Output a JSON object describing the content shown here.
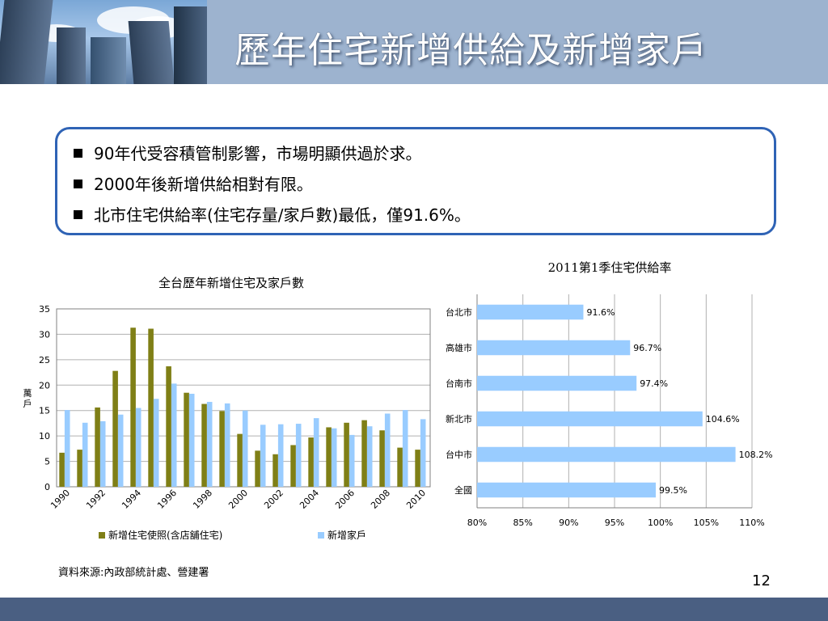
{
  "slide": {
    "title": "歷年住宅新增供給及新增家戶",
    "bullets": [
      "90年代受容積管制影響，市場明顯供過於求。",
      "2000年後新增供給相對有限。",
      "北市住宅供給率(住宅存量/家戶數)最低，僅91.6%。"
    ],
    "source": "資料來源:內政部統計處、營建署",
    "page_number": "12"
  },
  "chart_data": [
    {
      "type": "bar",
      "title": "全台歷年新增住宅及家戶數",
      "ylabel": "萬戶",
      "ylim": [
        0,
        35
      ],
      "yticks": [
        0,
        5,
        10,
        15,
        20,
        25,
        30,
        35
      ],
      "categories": [
        "1990",
        "1991",
        "1992",
        "1993",
        "1994",
        "1995",
        "1996",
        "1997",
        "1998",
        "1999",
        "2000",
        "2001",
        "2002",
        "2003",
        "2004",
        "2005",
        "2006",
        "2007",
        "2008",
        "2009",
        "2010"
      ],
      "xtick_labels": [
        "1990",
        "1992",
        "1994",
        "1996",
        "1998",
        "2000",
        "2002",
        "2004",
        "2006",
        "2008",
        "2010"
      ],
      "grid": true,
      "legend": "bottom",
      "series": [
        {
          "name": "新增住宅使照(含店舖住宅)",
          "color": "#7f7f16",
          "values": [
            6.7,
            7.3,
            15.6,
            22.8,
            31.3,
            31.1,
            23.7,
            18.5,
            16.3,
            14.9,
            10.4,
            7.1,
            6.4,
            8.2,
            9.7,
            11.7,
            12.6,
            13.1,
            11.1,
            7.7,
            7.3
          ]
        },
        {
          "name": "新增家戶",
          "color": "#99ccff",
          "values": [
            15.1,
            12.6,
            12.9,
            14.2,
            15.5,
            17.3,
            20.3,
            18.3,
            16.7,
            16.4,
            15.0,
            12.2,
            12.3,
            12.4,
            13.5,
            11.5,
            10.2,
            11.9,
            14.4,
            15.1,
            13.3
          ]
        }
      ]
    },
    {
      "type": "bar",
      "orientation": "horizontal",
      "title": "2011第1季住宅供給率",
      "xlim": [
        80,
        110
      ],
      "xticks": [
        "80%",
        "85%",
        "90%",
        "95%",
        "100%",
        "105%",
        "110%"
      ],
      "xtick_values": [
        80,
        85,
        90,
        95,
        100,
        105,
        110
      ],
      "grid": true,
      "color": "#99ccff",
      "categories": [
        "台北市",
        "高雄市",
        "台南市",
        "新北市",
        "台中市",
        "全國"
      ],
      "values": [
        91.6,
        96.7,
        97.4,
        104.6,
        108.2,
        99.5
      ],
      "data_labels": [
        "91.6%",
        "96.7%",
        "97.4%",
        "104.6%",
        "108.2%",
        "99.5%"
      ]
    }
  ]
}
